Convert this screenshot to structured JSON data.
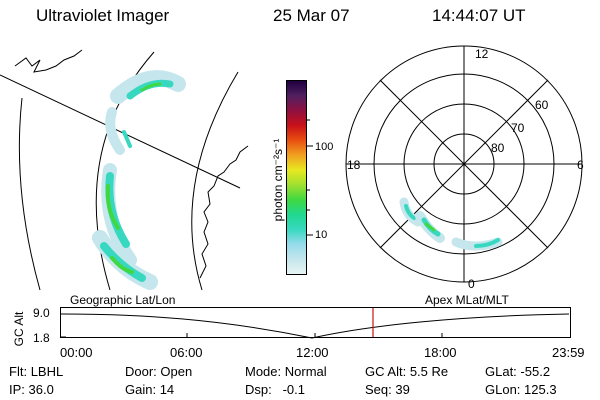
{
  "header": {
    "instrument": "Ultraviolet Imager",
    "date": "25 Mar 07",
    "time": "14:44:07 UT"
  },
  "colorbar": {
    "label": "photon cm⁻²s⁻¹",
    "ticks": [
      "100",
      "10"
    ],
    "colors": [
      "#e8f4f4",
      "#c4e6ec",
      "#98dcec",
      "#38d8c0",
      "#20d890",
      "#40d840",
      "#a0e030",
      "#e8e820",
      "#f0a020",
      "#e85010",
      "#c81018",
      "#901040",
      "#502060",
      "#200040"
    ]
  },
  "polar_plot": {
    "mlt_labels": {
      "top": "12",
      "left": "18",
      "right": "6",
      "bottom": "0"
    },
    "lat_labels": [
      "60",
      "70",
      "80"
    ]
  },
  "map_labels": {
    "left": "Geographic Lat/Lon",
    "right": "Apex MLat/MLT"
  },
  "altitude_strip": {
    "axis_label": "GC Alt",
    "y_ticks": [
      "9.0",
      "1.8"
    ],
    "x_ticks": [
      "00:00",
      "06:00",
      "12:00",
      "18:00",
      "23:59"
    ],
    "current_time_marker": "14:44",
    "line_color": "#d01010"
  },
  "status": {
    "filter_label": "Flt:",
    "filter_value": "LBHL",
    "door_label": "Door:",
    "door_value": "Open",
    "mode_label": "Mode:",
    "mode_value": "Normal",
    "gcalt_label": "GC Alt:",
    "gcalt_value": "5.5 Re",
    "glat_label": "GLat:",
    "glat_value": "-55.2",
    "ip_label": "IP:",
    "ip_value": "36.0",
    "gain_label": "Gain:",
    "gain_value": "14",
    "dsp_label": "Dsp:",
    "dsp_value": "-0.1",
    "seq_label": "Seq:",
    "seq_value": "39",
    "glon_label": "GLon:",
    "glon_value": "125.3"
  }
}
